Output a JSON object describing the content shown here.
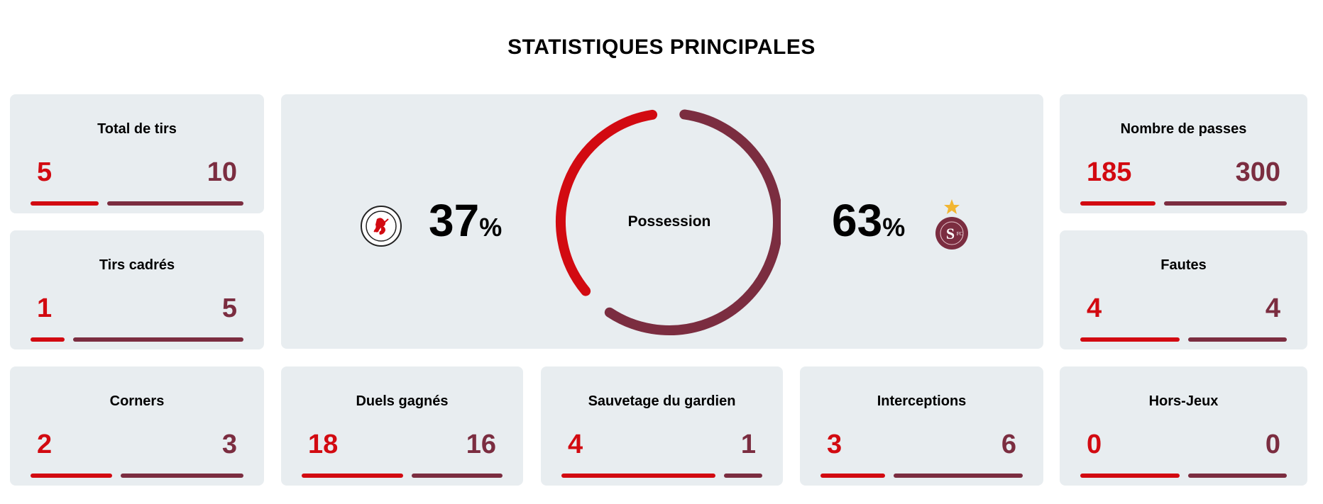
{
  "title": "STATISTIQUES PRINCIPALES",
  "colors": {
    "home": "#d20a11",
    "away": "#7b2d40",
    "card_bg": "#e8edf0"
  },
  "possession": {
    "label": "Possession",
    "home_value": "37",
    "away_value": "63",
    "unit": "%",
    "home_fraction": 0.37,
    "away_fraction": 0.63,
    "home_logo": "fc-winterthur-crest",
    "away_logo": "servette-fc-crest"
  },
  "stats": [
    {
      "label": "Total de tirs",
      "home": "5",
      "away": "10"
    },
    {
      "label": "Tirs cadrés",
      "home": "1",
      "away": "5"
    },
    {
      "label": "Corners",
      "home": "2",
      "away": "3"
    },
    {
      "label": "Duels gagnés",
      "home": "18",
      "away": "16"
    },
    {
      "label": "Sauvetage du gardien",
      "home": "4",
      "away": "1"
    },
    {
      "label": "Interceptions",
      "home": "3",
      "away": "6"
    },
    {
      "label": "Nombre de passes",
      "home": "185",
      "away": "300"
    },
    {
      "label": "Fautes",
      "home": "4",
      "away": "4"
    },
    {
      "label": "Hors-Jeux",
      "home": "0",
      "away": "0"
    }
  ]
}
